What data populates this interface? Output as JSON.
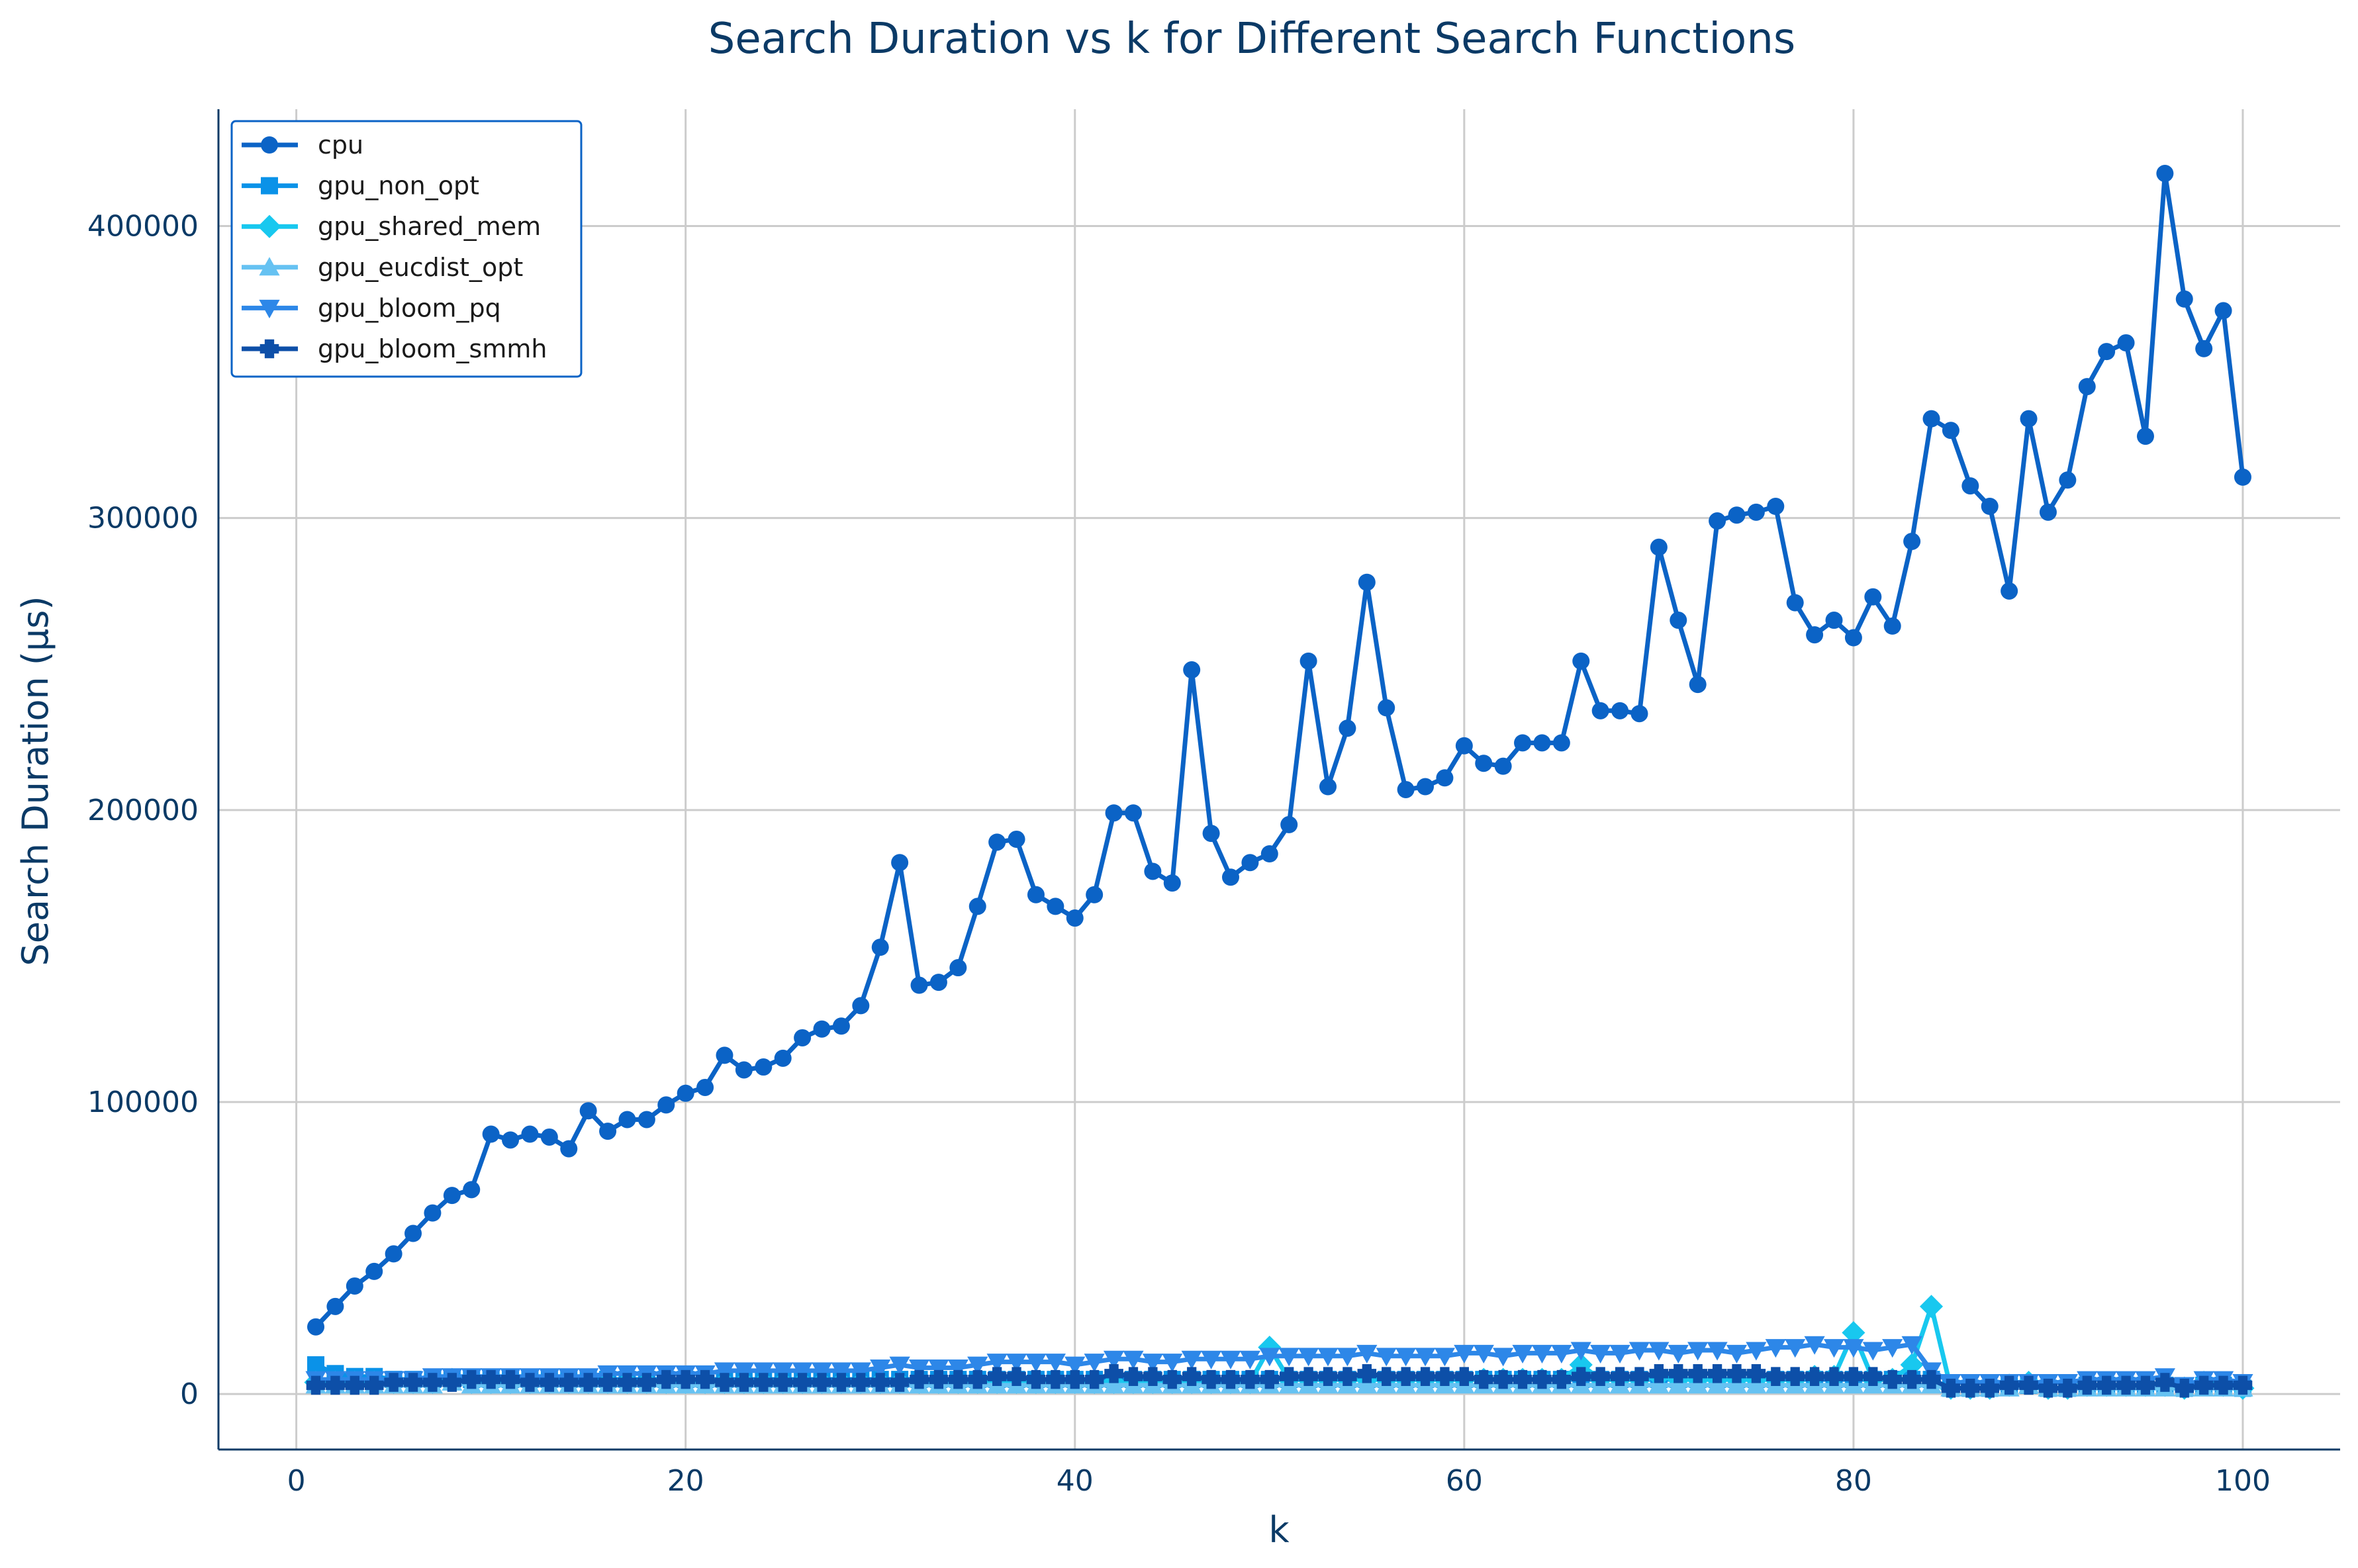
{
  "chart_data": {
    "type": "line",
    "title": "Search Duration vs k for Different Search Functions",
    "xlabel": "k",
    "ylabel": "Search Duration (μs)",
    "xlim": [
      -4,
      105
    ],
    "ylim": [
      -19000,
      440000
    ],
    "xticks": [
      0,
      20,
      40,
      60,
      80,
      100
    ],
    "yticks": [
      0,
      100000,
      200000,
      300000,
      400000
    ],
    "grid": true,
    "legend_position": "upper-left",
    "series": [
      {
        "name": "cpu",
        "color": "#0b63c6",
        "marker": "circle",
        "values": [
          23000,
          30000,
          37000,
          42000,
          48000,
          55000,
          62000,
          68000,
          70000,
          89000,
          87000,
          89000,
          88000,
          84000,
          97000,
          90000,
          94000,
          94000,
          99000,
          103000,
          105000,
          116000,
          111000,
          112000,
          115000,
          122000,
          125000,
          126000,
          133000,
          153000,
          182000,
          140000,
          141000,
          146000,
          167000,
          189000,
          190000,
          171000,
          167000,
          163000,
          171000,
          199000,
          199000,
          179000,
          175000,
          248000,
          192000,
          177000,
          182000,
          185000,
          195000,
          251000,
          208000,
          228000,
          278000,
          235000,
          207000,
          208000,
          211000,
          222000,
          216000,
          215000,
          223000,
          223000,
          223000,
          251000,
          234000,
          234000,
          233000,
          290000,
          265000,
          243000,
          299000,
          301000,
          302000,
          304000,
          271000,
          260000,
          265000,
          259000,
          273000,
          263000,
          292000,
          334000,
          330000,
          311000,
          304000,
          275000,
          334000,
          302000,
          313000,
          345000,
          357000,
          360000,
          328000,
          418000,
          375000,
          358000,
          371000,
          314000
        ]
      },
      {
        "name": "gpu_non_opt",
        "color": "#0a92e8",
        "marker": "square",
        "values": [
          10000,
          7000,
          6000,
          6000,
          5000,
          5000,
          5000,
          5000,
          5000,
          5000,
          5000,
          5000,
          5000,
          5000,
          5000,
          5000,
          5000,
          5000,
          5000,
          5000,
          5000,
          5000,
          5000,
          5000,
          5000,
          5000,
          5000,
          5000,
          5000,
          5000,
          5000,
          5000,
          5000,
          5000,
          5000,
          5000,
          5000,
          5000,
          5000,
          5000,
          5000,
          5000,
          5000,
          5000,
          5000,
          5000,
          5000,
          5000,
          5000,
          5000,
          5000,
          5000,
          5000,
          5000,
          5000,
          5000,
          5000,
          5000,
          5000,
          5000,
          5000,
          5000,
          5000,
          5000,
          5000,
          5000,
          5000,
          5000,
          5000,
          5000,
          5000,
          5000,
          5000,
          5000,
          5000,
          5000,
          5000,
          5000,
          5000,
          5000,
          5000,
          5000,
          5000,
          5000,
          2000,
          2000,
          2000,
          3000,
          3000,
          2000,
          2000,
          3000,
          3000,
          3000,
          3000,
          3000,
          2000,
          3000,
          3000,
          2000
        ]
      },
      {
        "name": "gpu_shared_mem",
        "color": "#18c8ef",
        "marker": "diamond",
        "values": [
          4000,
          4000,
          4000,
          4000,
          4000,
          4000,
          4000,
          5000,
          4000,
          4000,
          4000,
          4000,
          4000,
          4000,
          4000,
          4000,
          4000,
          4000,
          4000,
          4000,
          4000,
          4000,
          4000,
          4000,
          4000,
          4000,
          4000,
          4000,
          4000,
          4000,
          4000,
          4000,
          4000,
          4000,
          4000,
          4000,
          4000,
          4000,
          4000,
          4000,
          4000,
          4000,
          4000,
          4000,
          4000,
          4000,
          4000,
          4000,
          4000,
          16000,
          5000,
          5000,
          5000,
          5000,
          5000,
          5000,
          5000,
          5000,
          5000,
          5000,
          5000,
          5000,
          5000,
          5000,
          5000,
          10000,
          5000,
          5000,
          5000,
          6000,
          5000,
          5000,
          5000,
          5000,
          5000,
          5000,
          5000,
          6000,
          6000,
          21000,
          5000,
          5000,
          10000,
          30000,
          2000,
          2000,
          2000,
          3000,
          4000,
          2000,
          2000,
          3000,
          3000,
          3000,
          3000,
          3000,
          2000,
          4000,
          3000,
          2000
        ]
      },
      {
        "name": "gpu_eucdist_opt",
        "color": "#66c2f2",
        "marker": "triangle-up",
        "values": [
          3000,
          3000,
          3000,
          3000,
          3000,
          3000,
          3000,
          4000,
          3000,
          3000,
          3000,
          3000,
          3000,
          3000,
          3000,
          3000,
          3000,
          3000,
          3000,
          3000,
          3000,
          3000,
          3000,
          3000,
          3000,
          3000,
          3000,
          3000,
          3000,
          3000,
          3000,
          3000,
          3000,
          3000,
          3000,
          3000,
          3000,
          3000,
          3000,
          3000,
          3000,
          3000,
          3000,
          3000,
          3000,
          3000,
          3000,
          3000,
          3000,
          3000,
          3000,
          3000,
          3000,
          3000,
          3000,
          3000,
          3000,
          3000,
          3000,
          3000,
          3000,
          3000,
          3000,
          3000,
          3000,
          3000,
          3000,
          3000,
          3000,
          3000,
          3000,
          3000,
          3000,
          3000,
          3000,
          3000,
          3000,
          3000,
          3000,
          3000,
          3000,
          3000,
          3000,
          3000,
          2000,
          2000,
          2000,
          2000,
          3000,
          2000,
          2000,
          2000,
          2000,
          2000,
          2000,
          2000,
          2000,
          2000,
          2000,
          2000
        ]
      },
      {
        "name": "gpu_bloom_pq",
        "color": "#2d87e8",
        "marker": "triangle-down",
        "values": [
          5000,
          5000,
          5000,
          5000,
          5000,
          5000,
          6000,
          6000,
          6000,
          6000,
          6000,
          6000,
          6000,
          6000,
          6000,
          7000,
          7000,
          7000,
          7000,
          7000,
          7000,
          8000,
          8000,
          8000,
          8000,
          8000,
          8000,
          8000,
          8000,
          9000,
          10000,
          9000,
          9000,
          9000,
          10000,
          11000,
          11000,
          11000,
          11000,
          10000,
          11000,
          12000,
          12000,
          11000,
          11000,
          12000,
          12000,
          12000,
          12000,
          13000,
          13000,
          13000,
          13000,
          13000,
          14000,
          13000,
          13000,
          13000,
          13000,
          14000,
          14000,
          13000,
          14000,
          14000,
          14000,
          15000,
          14000,
          14000,
          15000,
          15000,
          14000,
          15000,
          15000,
          14000,
          15000,
          16000,
          16000,
          17000,
          16000,
          16000,
          15000,
          16000,
          17000,
          8000,
          4000,
          4000,
          4000,
          4000,
          4000,
          4000,
          4000,
          5000,
          5000,
          5000,
          5000,
          6000,
          3000,
          5000,
          5000,
          4000
        ]
      },
      {
        "name": "gpu_bloom_smmh",
        "color": "#0d4fa8",
        "marker": "plus",
        "values": [
          3000,
          3000,
          3000,
          3000,
          4000,
          4000,
          4000,
          4000,
          5000,
          5000,
          5000,
          4000,
          4000,
          4000,
          4000,
          4000,
          4000,
          4000,
          5000,
          5000,
          5000,
          4000,
          4000,
          4000,
          4000,
          4000,
          4000,
          4000,
          4000,
          4000,
          4000,
          5000,
          5000,
          5000,
          5000,
          6000,
          6000,
          5000,
          5000,
          5000,
          5000,
          7000,
          6000,
          6000,
          5000,
          6000,
          5000,
          5000,
          5000,
          5000,
          6000,
          6000,
          6000,
          6000,
          7000,
          6000,
          6000,
          6000,
          6000,
          6000,
          5000,
          5000,
          5000,
          5000,
          5000,
          6000,
          6000,
          6000,
          6000,
          7000,
          7000,
          7000,
          7000,
          7000,
          7000,
          6000,
          6000,
          6000,
          6000,
          6000,
          6000,
          5000,
          5000,
          5000,
          2000,
          2000,
          2000,
          3000,
          3000,
          2000,
          2000,
          3000,
          3000,
          3000,
          3000,
          4000,
          2000,
          3000,
          3000,
          3000
        ]
      }
    ]
  }
}
